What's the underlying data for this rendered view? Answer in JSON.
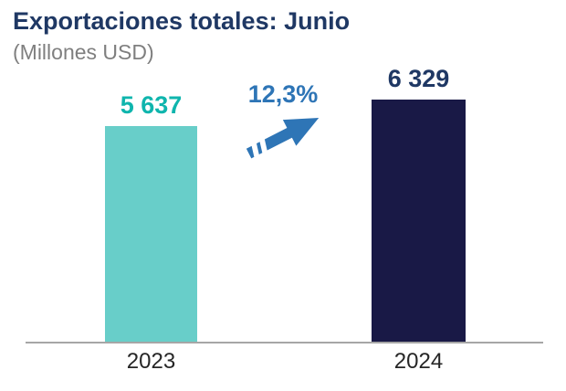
{
  "chart": {
    "title": "Exportaciones totales: Junio",
    "subtitle": "(Millones USD)"
  },
  "chart_data": {
    "type": "bar",
    "title": "Exportaciones totales: Junio",
    "subtitle": "(Millones USD)",
    "categories": [
      "2023",
      "2024"
    ],
    "values": [
      5637,
      6329
    ],
    "value_labels": [
      "5 637",
      "6 329"
    ],
    "annotations": {
      "growth_label": "12,3%",
      "growth_arrow": "up-right-arrow"
    },
    "ylim": [
      0,
      6700
    ],
    "xlabel": "",
    "ylabel": "",
    "legend": "none",
    "grid": false,
    "colors": {
      "bar_2023": "#68CEC9",
      "bar_2024": "#191946",
      "label_2023": "#0FB5AD",
      "label_2024": "#1F3864",
      "arrow": "#2E75B6",
      "title": "#1F3864",
      "subtitle": "#7F7F7F",
      "baseline": "#A6A6A6"
    }
  }
}
